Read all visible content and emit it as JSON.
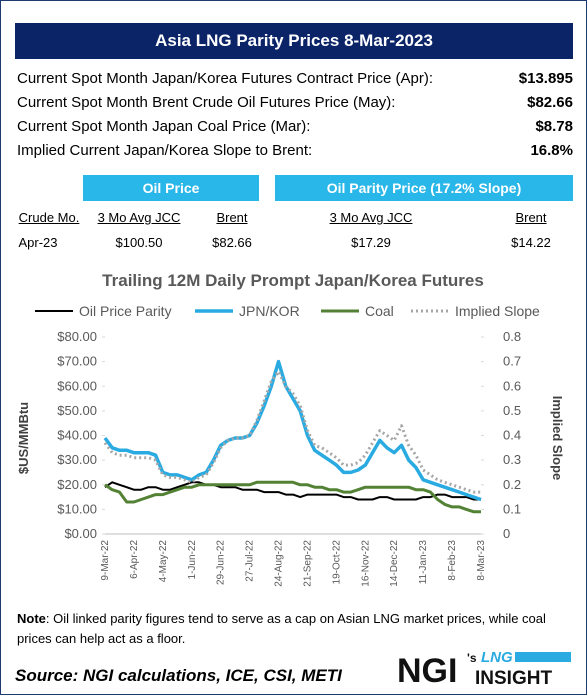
{
  "header": {
    "title": "Asia LNG Parity Prices 8-Mar-2023"
  },
  "prices": [
    {
      "label": "Current Spot Month Japan/Korea Futures Contract Price (Apr):",
      "value": "$13.895"
    },
    {
      "label": "Current Spot Month Brent Crude Oil Futures Price (May):",
      "value": "$82.66"
    },
    {
      "label": "Current Spot Month Japan Coal Price (Mar):",
      "value": "$8.78"
    },
    {
      "label": "Implied Current Japan/Korea Slope to Brent:",
      "value": "16.8%"
    }
  ],
  "boxes": [
    "Oil Price",
    "Oil Parity Price (17.2% Slope)"
  ],
  "table": {
    "columns": [
      "Crude Mo.",
      "3 Mo Avg JCC",
      "Brent",
      "3 Mo Avg JCC",
      "Brent"
    ],
    "rows": [
      [
        "Apr-23",
        "$100.50",
        "$82.66",
        "$17.29",
        "$14.22"
      ]
    ]
  },
  "chart_data": {
    "type": "line",
    "title": "Trailing 12M Daily Prompt Japan/Korea Futures",
    "ylabel": "$US/MMBtu",
    "y2label": "Implied Slope",
    "categories": [
      "9-Mar-22",
      null,
      null,
      null,
      "6-Apr-22",
      null,
      null,
      null,
      "4-May-22",
      null,
      null,
      null,
      "1-Jun-22",
      null,
      null,
      null,
      "29-Jun-22",
      null,
      null,
      null,
      "27-Jul-22",
      null,
      null,
      null,
      "24-Aug-22",
      null,
      null,
      null,
      "21-Sep-22",
      null,
      null,
      null,
      "19-Oct-22",
      null,
      null,
      null,
      "16-Nov-22",
      null,
      null,
      null,
      "14-Dec-22",
      null,
      null,
      null,
      "11-Jan-23",
      null,
      null,
      null,
      "8-Feb-23",
      null,
      null,
      null,
      "8-Mar-23"
    ],
    "series": [
      {
        "name": "Oil Price Parity",
        "color": "#000000",
        "width": 2,
        "values": [
          19,
          21,
          20,
          19,
          18,
          18,
          19,
          19,
          18,
          18,
          19,
          20,
          21,
          21,
          20,
          20,
          19,
          19,
          19,
          18,
          18,
          18,
          17,
          17,
          17,
          16,
          16,
          15,
          16,
          16,
          16,
          16,
          16,
          15,
          15,
          14,
          14,
          14,
          15,
          15,
          14,
          14,
          14,
          14,
          15,
          15,
          16,
          16,
          15,
          15,
          15,
          14,
          14
        ]
      },
      {
        "name": "JPN/KOR",
        "color": "#29abe2",
        "width": 3.5,
        "values": [
          39,
          35,
          34,
          34,
          33,
          33,
          33,
          32,
          25,
          24,
          24,
          23,
          22,
          24,
          25,
          30,
          36,
          38,
          39,
          39,
          40,
          45,
          52,
          60,
          70,
          60,
          55,
          50,
          40,
          34,
          32,
          30,
          28,
          25,
          25,
          26,
          28,
          33,
          38,
          35,
          33,
          36,
          30,
          27,
          22,
          21,
          20,
          19,
          18,
          17,
          16,
          15,
          14
        ]
      },
      {
        "name": "Coal",
        "color": "#548235",
        "width": 3,
        "values": [
          20,
          18,
          17,
          13,
          13,
          14,
          15,
          16,
          16,
          17,
          18,
          19,
          19,
          20,
          20,
          20,
          20,
          20,
          20,
          20,
          20,
          21,
          21,
          21,
          21,
          21,
          21,
          20,
          20,
          19,
          19,
          18,
          18,
          17,
          17,
          18,
          19,
          19,
          19,
          19,
          19,
          19,
          19,
          18,
          18,
          17,
          14,
          12,
          11,
          11,
          10,
          9,
          9
        ]
      },
      {
        "name": "Implied Slope",
        "color": "#a6a6a6",
        "width": 3,
        "style": "dotted",
        "axis": "y2",
        "values": [
          0.37,
          0.33,
          0.32,
          0.32,
          0.31,
          0.31,
          0.31,
          0.3,
          0.24,
          0.23,
          0.23,
          0.22,
          0.21,
          0.23,
          0.24,
          0.29,
          0.35,
          0.38,
          0.39,
          0.39,
          0.4,
          0.46,
          0.54,
          0.62,
          0.66,
          0.6,
          0.57,
          0.52,
          0.42,
          0.36,
          0.35,
          0.33,
          0.31,
          0.28,
          0.28,
          0.29,
          0.32,
          0.37,
          0.42,
          0.4,
          0.38,
          0.44,
          0.36,
          0.32,
          0.26,
          0.24,
          0.22,
          0.21,
          0.2,
          0.19,
          0.18,
          0.17,
          0.17
        ]
      }
    ],
    "ylim": [
      0,
      80
    ],
    "yticks": [
      {
        "value": 0,
        "label": "$0.00"
      },
      {
        "value": 10,
        "label": "$10.00"
      },
      {
        "value": 20,
        "label": "$20.00"
      },
      {
        "value": 30,
        "label": "$30.00"
      },
      {
        "value": 40,
        "label": "$40.00"
      },
      {
        "value": 50,
        "label": "$50.00"
      },
      {
        "value": 60,
        "label": "$60.00"
      },
      {
        "value": 70,
        "label": "$70.00"
      },
      {
        "value": 80,
        "label": "$80.00"
      }
    ],
    "y2lim": [
      0,
      0.8
    ],
    "y2ticks": [
      0,
      0.1,
      0.2,
      0.3,
      0.4,
      0.5,
      0.6,
      0.7,
      0.8
    ],
    "legend": "top"
  },
  "note": {
    "label": "Note",
    "text": ": Oil linked parity figures tend to serve as a cap on Asian LNG market prices, while coal prices can help act as a floor."
  },
  "source": "Source: NGI calculations, ICE, CSI, METI",
  "logo": {
    "name": "NGI",
    "suffix": "'s",
    "top": "LNG",
    "bottom": "INSIGHT"
  }
}
